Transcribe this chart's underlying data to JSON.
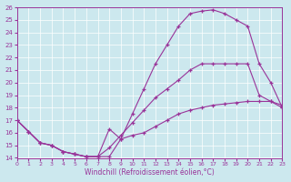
{
  "xlabel": "Windchill (Refroidissement éolien,°C)",
  "background_color": "#cce8ee",
  "line_color": "#993399",
  "xlim": [
    0,
    23
  ],
  "ylim": [
    14,
    26
  ],
  "xticks": [
    0,
    1,
    2,
    3,
    4,
    5,
    6,
    7,
    8,
    9,
    10,
    11,
    12,
    13,
    14,
    15,
    16,
    17,
    18,
    19,
    20,
    21,
    22,
    23
  ],
  "yticks": [
    14,
    15,
    16,
    17,
    18,
    19,
    20,
    21,
    22,
    23,
    24,
    25,
    26
  ],
  "line1_x": [
    0,
    1,
    2,
    3,
    4,
    5,
    6,
    7,
    8,
    9,
    10,
    11,
    12,
    13,
    14,
    15,
    16,
    17,
    18,
    19,
    20,
    21,
    22,
    23
  ],
  "line1_y": [
    17.0,
    16.1,
    15.2,
    15.0,
    14.5,
    14.3,
    14.1,
    14.1,
    14.1,
    15.5,
    17.5,
    19.5,
    21.5,
    23.0,
    24.5,
    25.5,
    25.7,
    25.8,
    25.5,
    25.0,
    24.5,
    21.5,
    20.0,
    18.0
  ],
  "line2_x": [
    0,
    1,
    2,
    3,
    4,
    5,
    6,
    7,
    8,
    9,
    10,
    11,
    12,
    13,
    14,
    15,
    16,
    17,
    18,
    19,
    20,
    21,
    22,
    23
  ],
  "line2_y": [
    17.0,
    16.1,
    15.2,
    15.0,
    14.5,
    14.3,
    14.1,
    14.1,
    14.8,
    15.8,
    16.8,
    17.8,
    18.8,
    19.5,
    20.2,
    21.0,
    21.5,
    21.5,
    21.5,
    21.5,
    21.5,
    19.0,
    18.5,
    18.0
  ],
  "line3_x": [
    0,
    1,
    2,
    3,
    4,
    5,
    6,
    7,
    8,
    9,
    10,
    11,
    12,
    13,
    14,
    15,
    16,
    17,
    18,
    19,
    20,
    21,
    22,
    23
  ],
  "line3_y": [
    17.0,
    16.1,
    15.2,
    15.0,
    14.5,
    14.3,
    14.1,
    14.1,
    16.3,
    15.5,
    15.8,
    16.0,
    16.5,
    17.0,
    17.5,
    17.8,
    18.0,
    18.2,
    18.3,
    18.4,
    18.5,
    18.5,
    18.5,
    18.2
  ]
}
